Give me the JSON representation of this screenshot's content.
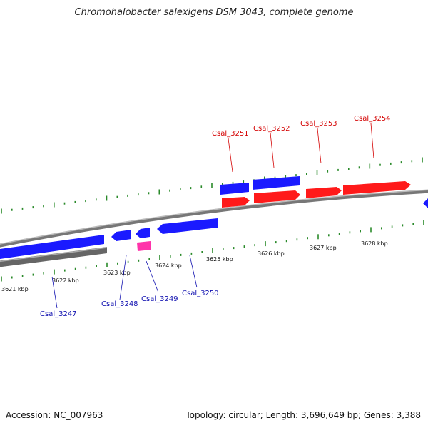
{
  "title": "Chromohalobacter salexigens DSM 3043, complete genome",
  "accession": "Accession: NC_007963",
  "stats": "Topology: circular; Length: 3,696,649 bp; Genes: 3,388",
  "colors": {
    "forward_cds": "#ff1a1a",
    "reverse_cds": "#1a1aff",
    "rna": "#ff33aa",
    "backbone": "#888888",
    "backbone_dark": "#555555",
    "tick": "#2a8a2a",
    "label_forward": "#d40000",
    "label_reverse": "#1010b0"
  },
  "scale_labels": [
    "3621 kbp",
    "3622 kbp",
    "3623 kbp",
    "3624 kbp",
    "3625 kbp",
    "3626 kbp",
    "3627 kbp",
    "3628 kbp"
  ],
  "genes": [
    {
      "id": "Csal_3247",
      "strand": "reverse"
    },
    {
      "id": "Csal_3248",
      "strand": "reverse"
    },
    {
      "id": "Csal_3249",
      "strand": "reverse"
    },
    {
      "id": "Csal_3250",
      "strand": "reverse"
    },
    {
      "id": "Csal_3251",
      "strand": "forward"
    },
    {
      "id": "Csal_3252",
      "strand": "forward"
    },
    {
      "id": "Csal_3253",
      "strand": "forward"
    },
    {
      "id": "Csal_3254",
      "strand": "forward"
    }
  ]
}
